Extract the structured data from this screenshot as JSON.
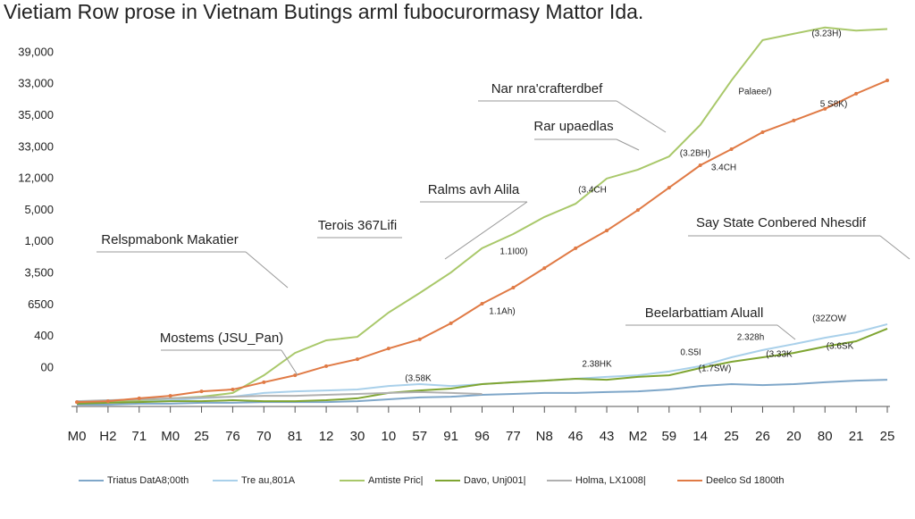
{
  "chart_data": {
    "type": "line",
    "title": "Vietiam Row prose in Vietnam Butings arml fubocurormasy Mattor Ida.",
    "categories": [
      "M0",
      "H2",
      "71",
      "M0",
      "25",
      "76",
      "70",
      "81",
      "12",
      "30",
      "10",
      "57",
      "91",
      "96",
      "77",
      "N8",
      "46",
      "43",
      "M2",
      "59",
      "14",
      "25",
      "26",
      "20",
      "80",
      "21",
      "25"
    ],
    "ylim": [
      -1.2,
      10.9
    ],
    "yticks": [
      {
        "value": 0,
        "label": "00"
      },
      {
        "value": 1,
        "label": "400"
      },
      {
        "value": 2,
        "label": "6500"
      },
      {
        "value": 3,
        "label": "3,500"
      },
      {
        "value": 4,
        "label": "1,000"
      },
      {
        "value": 5,
        "label": "5,000"
      },
      {
        "value": 6,
        "label": "12,000"
      },
      {
        "value": 7,
        "label": "33,000"
      },
      {
        "value": 8,
        "label": "35,000"
      },
      {
        "value": 9,
        "label": "33,000"
      },
      {
        "value": 10,
        "label": "39,000"
      }
    ],
    "grid": false,
    "series": [
      {
        "name": "Triatus DatA8;00th",
        "color": "#7fa7c9",
        "values": [
          -1.16,
          -1.16,
          -1.13,
          -1.13,
          -1.1,
          -1.1,
          -1.08,
          -1.08,
          -1.08,
          -1.05,
          -0.99,
          -0.93,
          -0.91,
          -0.85,
          -0.82,
          -0.79,
          -0.79,
          -0.76,
          -0.74,
          -0.68,
          -0.57,
          -0.51,
          -0.54,
          -0.51,
          -0.45,
          -0.4,
          -0.37
        ]
      },
      {
        "name": "Tre au,801A",
        "color": "#a9d0ea",
        "values": [
          -1.1,
          -1.08,
          -1.05,
          -1.02,
          -0.96,
          -0.91,
          -0.79,
          -0.74,
          -0.71,
          -0.68,
          -0.57,
          -0.51,
          -0.57,
          -0.51,
          -0.45,
          -0.4,
          -0.34,
          -0.28,
          -0.23,
          -0.11,
          0.06,
          0.34,
          0.57,
          0.76,
          0.96,
          1.13,
          1.39
        ]
      },
      {
        "name": "Amtiste Pric|",
        "color": "#a9c86a",
        "values": [
          -1.08,
          -1.05,
          -1.02,
          -0.96,
          -0.91,
          -0.79,
          -0.23,
          0.48,
          0.88,
          0.99,
          1.76,
          2.38,
          3.03,
          3.8,
          4.25,
          4.79,
          5.21,
          6.01,
          6.29,
          6.71,
          7.71,
          9.12,
          10.4,
          10.6,
          10.8,
          10.7,
          10.75
        ]
      },
      {
        "name": "Davo, Unj001|",
        "color": "#7fa532",
        "values": [
          -1.13,
          -1.1,
          -1.08,
          -1.05,
          -1.05,
          -1.02,
          -1.05,
          -1.05,
          -1.02,
          -0.96,
          -0.79,
          -0.71,
          -0.65,
          -0.51,
          -0.45,
          -0.4,
          -0.34,
          -0.37,
          -0.28,
          -0.23,
          0,
          0.2,
          0.34,
          0.48,
          0.68,
          0.85,
          1.25
        ]
      },
      {
        "name": "Holma, LX1008|",
        "color": "#b0b0b0",
        "values": [
          -1.05,
          -1.02,
          -0.99,
          -0.96,
          -0.93,
          -0.91,
          -0.88,
          -0.88,
          -0.85,
          -0.82,
          -0.79,
          -0.76,
          -0.79,
          -0.82,
          null,
          null,
          null,
          null,
          null,
          null,
          null,
          null,
          null,
          null,
          null,
          null,
          null
        ]
      },
      {
        "name": "Deelco Sd 1800th",
        "color": "#e07a45",
        "values": [
          -1.08,
          -1.05,
          -0.96,
          -0.88,
          -0.74,
          -0.68,
          -0.45,
          -0.23,
          0.06,
          0.28,
          0.62,
          0.91,
          1.42,
          2.04,
          2.55,
          3.17,
          3.8,
          4.36,
          5.01,
          5.72,
          6.43,
          6.94,
          7.48,
          7.85,
          8.22,
          8.7,
          9.12
        ]
      }
    ],
    "annotations": [
      "Nar nra'crafterdbef",
      "Rar upaedlas",
      "Ralms avh Alila",
      "Terois 367Lifi",
      "Relspmabonk Makatier",
      "Mostems (JSU_Pan)",
      "Say State Conbered Nhesdif",
      "Beelarbattiam Aluall"
    ],
    "notes": [
      "(3.23H)",
      "Palaee/)",
      "5 S8K)",
      "(3.2BH)",
      "3.4CH",
      "(3.4CH",
      "1.1I00)",
      "1.1Ah)",
      "2.38HK",
      "(32ZOW",
      "2.328h",
      "(3.6SK",
      "0.S5I",
      "(1.7SW)",
      "(3.33K",
      "(3.58K"
    ]
  }
}
